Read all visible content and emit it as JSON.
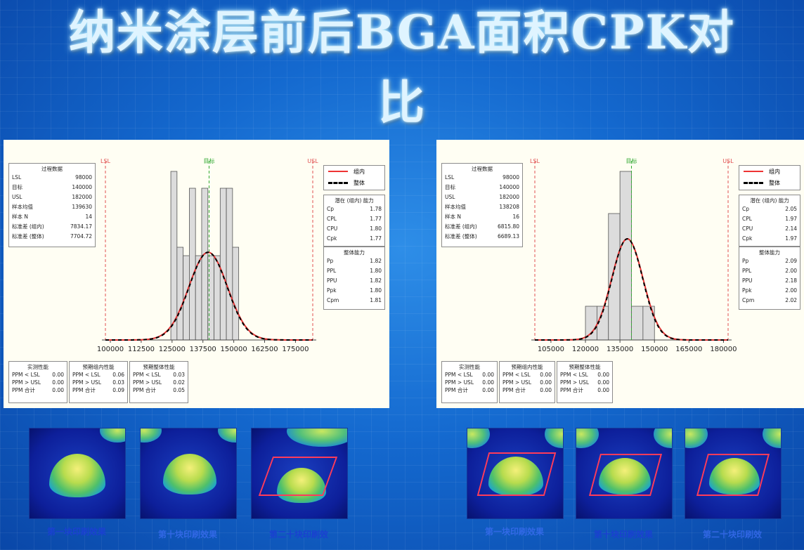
{
  "title": {
    "line1": "纳米涂层前后BGA面积CPK对",
    "line2": "比"
  },
  "colors": {
    "within": "#e33333",
    "overall": "#000000",
    "spec": "#e05050",
    "target": "#33aa33",
    "bar_fill": "#dcdcdc"
  },
  "charts": [
    {
      "process_data": {
        "header": "过程数据",
        "rows": [
          [
            "LSL",
            "98000"
          ],
          [
            "目标",
            "140000"
          ],
          [
            "USL",
            "182000"
          ],
          [
            "样本均值",
            "139630"
          ],
          [
            "样本 N",
            "14"
          ],
          [
            "标准差 (组内)",
            "7834.17"
          ],
          [
            "标准差 (整体)",
            "7704.72"
          ]
        ]
      },
      "legend": {
        "within": "组内",
        "overall": "整体"
      },
      "potential": {
        "header": "潜在 (组内) 能力",
        "rows": [
          [
            "Cp",
            "1.78"
          ],
          [
            "CPL",
            "1.77"
          ],
          [
            "CPU",
            "1.80"
          ],
          [
            "Cpk",
            "1.77"
          ]
        ]
      },
      "overall_cap": {
        "header": "整体能力",
        "rows": [
          [
            "Pp",
            "1.82"
          ],
          [
            "PPL",
            "1.80"
          ],
          [
            "PPU",
            "1.82"
          ],
          [
            "Ppk",
            "1.80"
          ],
          [
            "Cpm",
            "1.81"
          ]
        ]
      },
      "perf": [
        {
          "header": "实测性能",
          "rows": [
            [
              "PPM < LSL",
              "0.00"
            ],
            [
              "PPM > USL",
              "0.00"
            ],
            [
              "PPM 合计",
              "0.00"
            ]
          ]
        },
        {
          "header": "预期组内性能",
          "rows": [
            [
              "PPM < LSL",
              "0.06"
            ],
            [
              "PPM > USL",
              "0.03"
            ],
            [
              "PPM 合计",
              "0.09"
            ]
          ]
        },
        {
          "header": "预期整体性能",
          "rows": [
            [
              "PPM < LSL",
              "0.03"
            ],
            [
              "PPM > USL",
              "0.02"
            ],
            [
              "PPM 合计",
              "0.05"
            ]
          ]
        }
      ],
      "spec_labels": {
        "lsl": "LSL",
        "target": "目标",
        "usl": "USL"
      }
    },
    {
      "process_data": {
        "header": "过程数据",
        "rows": [
          [
            "LSL",
            "98000"
          ],
          [
            "目标",
            "140000"
          ],
          [
            "USL",
            "182000"
          ],
          [
            "样本均值",
            "138208"
          ],
          [
            "样本 N",
            "16"
          ],
          [
            "标准差 (组内)",
            "6815.80"
          ],
          [
            "标准差 (整体)",
            "6689.13"
          ]
        ]
      },
      "legend": {
        "within": "组内",
        "overall": "整体"
      },
      "potential": {
        "header": "潜在 (组内) 能力",
        "rows": [
          [
            "Cp",
            "2.05"
          ],
          [
            "CPL",
            "1.97"
          ],
          [
            "CPU",
            "2.14"
          ],
          [
            "Cpk",
            "1.97"
          ]
        ]
      },
      "overall_cap": {
        "header": "整体能力",
        "rows": [
          [
            "Pp",
            "2.09"
          ],
          [
            "PPL",
            "2.00"
          ],
          [
            "PPU",
            "2.18"
          ],
          [
            "Ppk",
            "2.00"
          ],
          [
            "Cpm",
            "2.02"
          ]
        ]
      },
      "perf": [
        {
          "header": "实测性能",
          "rows": [
            [
              "PPM < LSL",
              "0.00"
            ],
            [
              "PPM > USL",
              "0.00"
            ],
            [
              "PPM 合计",
              "0.00"
            ]
          ]
        },
        {
          "header": "预期组内性能",
          "rows": [
            [
              "PPM < LSL",
              "0.00"
            ],
            [
              "PPM > USL",
              "0.00"
            ],
            [
              "PPM 合计",
              "0.00"
            ]
          ]
        },
        {
          "header": "预期整体性能",
          "rows": [
            [
              "PPM < LSL",
              "0.00"
            ],
            [
              "PPM > USL",
              "0.00"
            ],
            [
              "PPM 合计",
              "0.00"
            ]
          ]
        }
      ],
      "spec_labels": {
        "lsl": "LSL",
        "target": "目标",
        "usl": "USL"
      }
    }
  ],
  "chart_data": [
    {
      "type": "bar",
      "xlim": [
        98000,
        182000
      ],
      "ticks": [
        100000,
        112500,
        125000,
        137500,
        150000,
        162500,
        175000
      ],
      "tick_labels": [
        "100000",
        "112500",
        "125000",
        "137500",
        "150000",
        "162500",
        "175000"
      ],
      "bins": [
        [
          124500,
          127000
        ],
        [
          127000,
          129500
        ],
        [
          129500,
          132000
        ],
        [
          132000,
          134500
        ],
        [
          134500,
          137000
        ],
        [
          137000,
          139500
        ],
        [
          139500,
          142000
        ],
        [
          142000,
          144500
        ],
        [
          144500,
          147000
        ],
        [
          147000,
          149500
        ],
        [
          149500,
          152000
        ]
      ],
      "counts": [
        1.0,
        0.55,
        0.5,
        0.9,
        0.5,
        0.9,
        0.5,
        0.5,
        0.9,
        0.9,
        0.55
      ],
      "lsl": 98000,
      "target": 140000,
      "usl": 182000,
      "mean": 139630,
      "sd_within": 7834.17,
      "sd_overall": 7704.72,
      "curve_peak": 0.52
    },
    {
      "type": "bar",
      "xlim": [
        98000,
        182000
      ],
      "ticks": [
        105000,
        120000,
        135000,
        150000,
        165000,
        180000
      ],
      "tick_labels": [
        "105000",
        "120000",
        "135000",
        "150000",
        "165000",
        "180000"
      ],
      "bins": [
        [
          120000,
          125000
        ],
        [
          125000,
          130000
        ],
        [
          130000,
          135000
        ],
        [
          135000,
          140000
        ],
        [
          140000,
          145000
        ],
        [
          145000,
          150000
        ]
      ],
      "counts": [
        0.2,
        0.2,
        0.75,
        1.0,
        0.2,
        0.2
      ],
      "lsl": 98000,
      "target": 140000,
      "usl": 182000,
      "mean": 138208,
      "sd_within": 6815.8,
      "sd_overall": 6689.13,
      "curve_peak": 0.6
    }
  ],
  "thumbnails": {
    "left": [
      {
        "caption": "第一块印刷效果",
        "frame": false
      },
      {
        "caption": "第十块印刷效果",
        "frame": false
      },
      {
        "caption": "第二十块印刷效",
        "frame": true
      }
    ],
    "right": [
      {
        "caption": "第一块印刷效果",
        "frame": true
      },
      {
        "caption": "第十块印刷效果",
        "frame": true
      },
      {
        "caption": "第二十块印刷效",
        "frame": true
      }
    ]
  }
}
